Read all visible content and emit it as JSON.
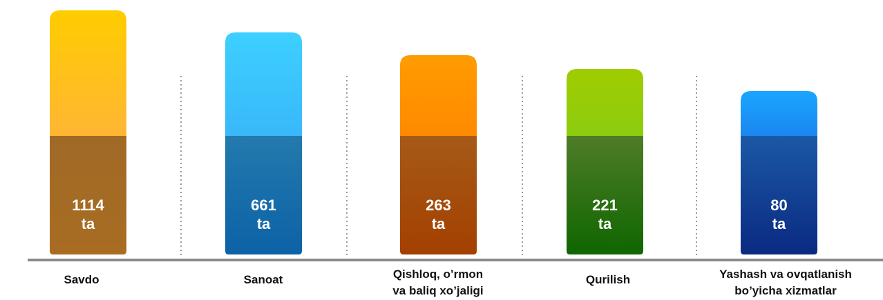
{
  "items": [
    {
      "label": [
        "Savdo"
      ],
      "value": 1114,
      "unit": "ta"
    },
    {
      "label": [
        "Sanoat"
      ],
      "value": 661,
      "unit": "ta"
    },
    {
      "label": [
        "Qishloq, o’rmon",
        "va baliq xo’jaligi"
      ],
      "value": 263,
      "unit": "ta"
    },
    {
      "label": [
        "Qurilish"
      ],
      "value": 221,
      "unit": "ta"
    },
    {
      "label": [
        "Yashash va ovqatlanish",
        "bo’yicha xizmatlar"
      ],
      "value": 80,
      "unit": "ta"
    }
  ]
}
